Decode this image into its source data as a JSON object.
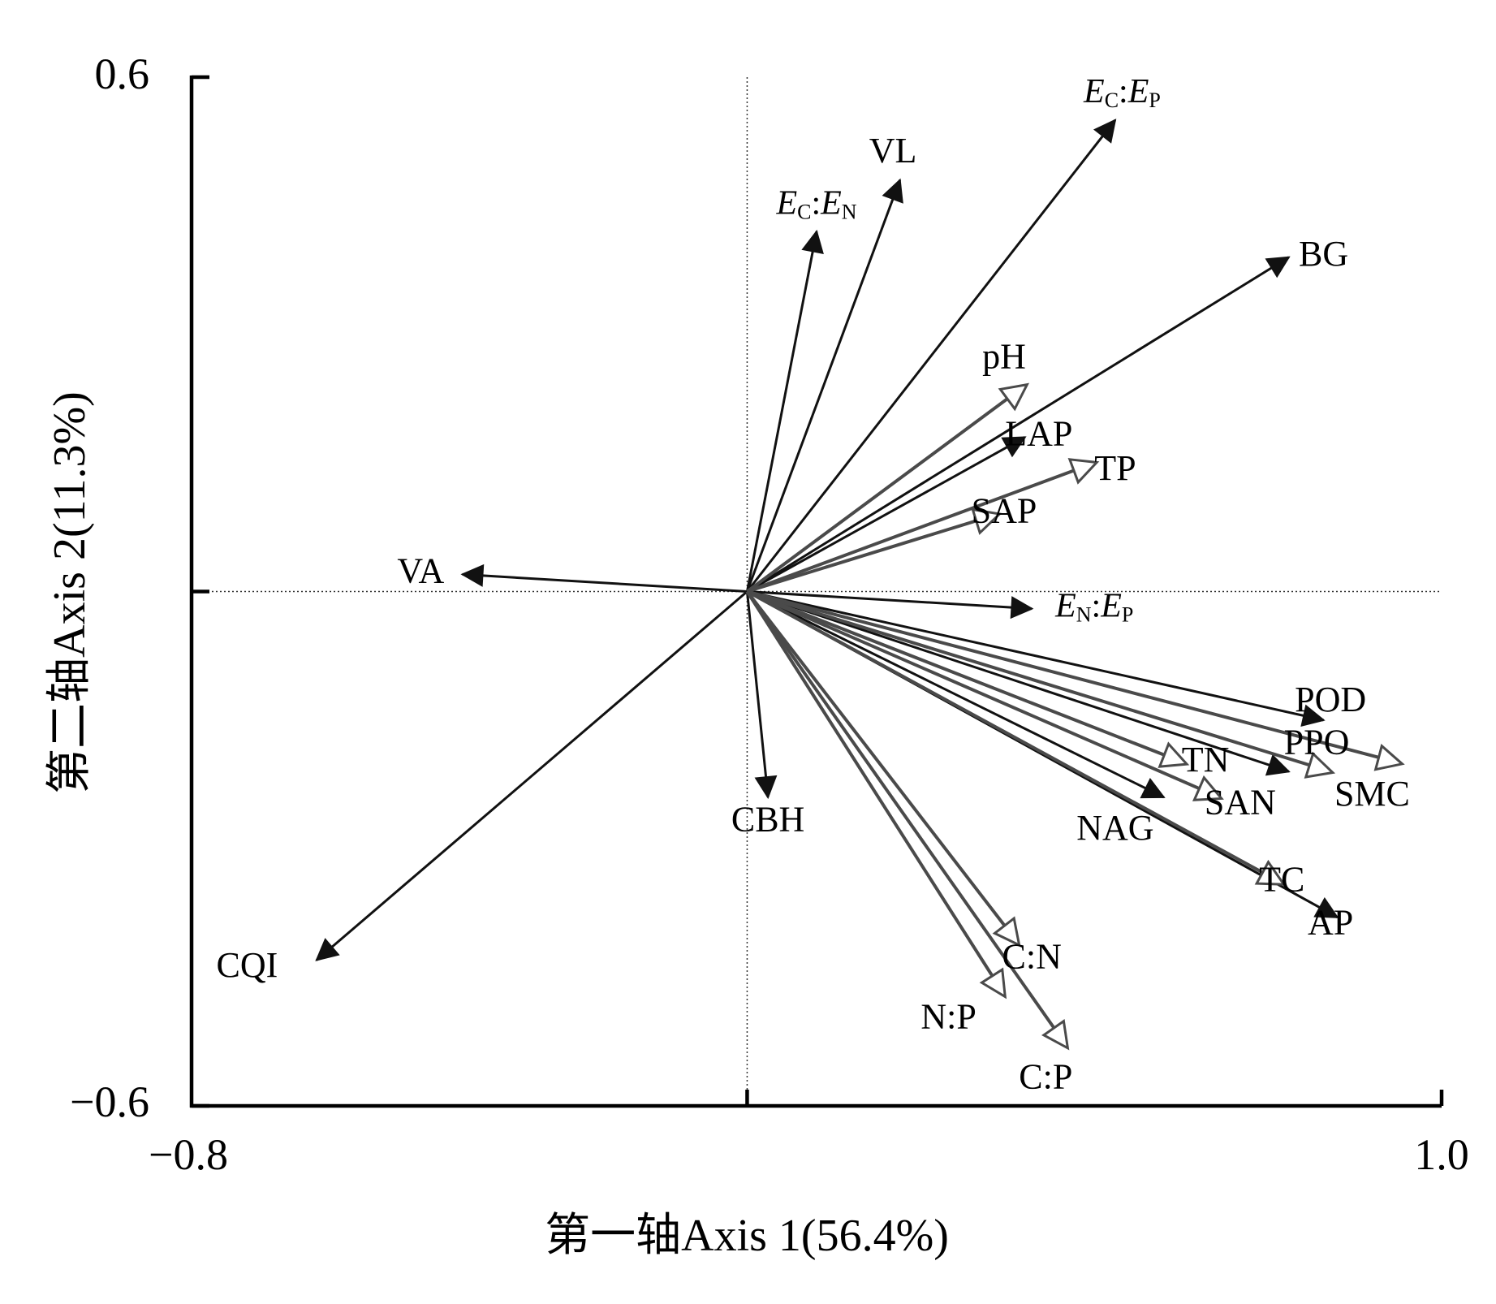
{
  "chart_data": {
    "type": "biplot",
    "xlabel": "第一轴Axis 1(56.4%)",
    "ylabel": "第二轴Axis 2(11.3%)",
    "xlim": [
      -0.8,
      1.0
    ],
    "ylim": [
      -0.6,
      0.6
    ],
    "x_tick_labels": [
      "−0.8",
      "1.0"
    ],
    "y_tick_labels": [
      "0.6",
      "−0.6"
    ],
    "reference_lines": "dotted lines at x = 0 and y = 0",
    "grid": false,
    "series": [
      {
        "marker": "filled-arrowhead",
        "color": "#111111",
        "vectors": [
          {
            "label": "VL",
            "x": 0.22,
            "y": 0.48
          },
          {
            "label": "E_C:E_N",
            "x": 0.1,
            "y": 0.42
          },
          {
            "label": "E_C:E_P",
            "x": 0.53,
            "y": 0.55
          },
          {
            "label": "BG",
            "x": 0.78,
            "y": 0.39
          },
          {
            "label": "LAP",
            "x": 0.4,
            "y": 0.18
          },
          {
            "label": "VA",
            "x": -0.41,
            "y": 0.02
          },
          {
            "label": "E_N:E_P",
            "x": 0.41,
            "y": -0.02
          },
          {
            "label": "POD",
            "x": 0.83,
            "y": -0.15
          },
          {
            "label": "SMC",
            "x": 0.78,
            "y": -0.21
          },
          {
            "label": "NAG",
            "x": 0.6,
            "y": -0.24
          },
          {
            "label": "AP",
            "x": 0.85,
            "y": -0.38
          },
          {
            "label": "CBH",
            "x": 0.03,
            "y": -0.24
          },
          {
            "label": "CQI",
            "x": -0.62,
            "y": -0.43
          }
        ]
      },
      {
        "marker": "hollow-arrowhead",
        "color": "#4a4a4a",
        "vectors": [
          {
            "label": "pH",
            "x": 0.4,
            "y": 0.24
          },
          {
            "label": "TP",
            "x": 0.5,
            "y": 0.15
          },
          {
            "label": "SAP",
            "x": 0.36,
            "y": 0.09
          },
          {
            "label": "PPO",
            "x": 0.84,
            "y": -0.21
          },
          {
            "label": "SMC",
            "x": 0.94,
            "y": -0.2
          },
          {
            "label": "TN",
            "x": 0.68,
            "y": -0.24
          },
          {
            "label": "SAN",
            "x": 0.63,
            "y": -0.2
          },
          {
            "label": "TC",
            "x": 0.77,
            "y": -0.34
          },
          {
            "label": "C:N",
            "x": 0.39,
            "y": -0.41
          },
          {
            "label": "N:P",
            "x": 0.37,
            "y": -0.47
          },
          {
            "label": "C:P",
            "x": 0.46,
            "y": -0.53
          }
        ]
      }
    ],
    "point_labels": [
      {
        "text": "VL",
        "x": 0.21,
        "y": 0.51
      },
      {
        "text": "BG",
        "x": 0.83,
        "y": 0.39
      },
      {
        "text": "pH",
        "x": 0.37,
        "y": 0.27
      },
      {
        "text": "LAP",
        "x": 0.42,
        "y": 0.18
      },
      {
        "text": "TP",
        "x": 0.53,
        "y": 0.14
      },
      {
        "text": "SAP",
        "x": 0.37,
        "y": 0.09
      },
      {
        "text": "VA",
        "x": -0.47,
        "y": 0.02
      },
      {
        "text": "POD",
        "x": 0.84,
        "y": -0.13
      },
      {
        "text": "PPO",
        "x": 0.82,
        "y": -0.18
      },
      {
        "text": "TN",
        "x": 0.66,
        "y": -0.2
      },
      {
        "text": "SMC",
        "x": 0.9,
        "y": -0.24
      },
      {
        "text": "SAN",
        "x": 0.71,
        "y": -0.25
      },
      {
        "text": "CBH",
        "x": 0.03,
        "y": -0.27
      },
      {
        "text": "NAG",
        "x": 0.53,
        "y": -0.28
      },
      {
        "text": "TC",
        "x": 0.77,
        "y": -0.34
      },
      {
        "text": "AP",
        "x": 0.84,
        "y": -0.39
      },
      {
        "text": "C:N",
        "x": 0.41,
        "y": -0.43
      },
      {
        "text": "N:P",
        "x": 0.29,
        "y": -0.5
      },
      {
        "text": "C:P",
        "x": 0.43,
        "y": -0.57
      },
      {
        "text": "CQI",
        "x": -0.72,
        "y": -0.44
      }
    ],
    "ratio_labels": [
      {
        "sub1": "C",
        "sub2": "N",
        "x": 0.1,
        "y": 0.45
      },
      {
        "sub1": "C",
        "sub2": "P",
        "x": 0.54,
        "y": 0.58
      },
      {
        "sub1": "N",
        "sub2": "P",
        "x": 0.5,
        "y": -0.02
      }
    ]
  }
}
